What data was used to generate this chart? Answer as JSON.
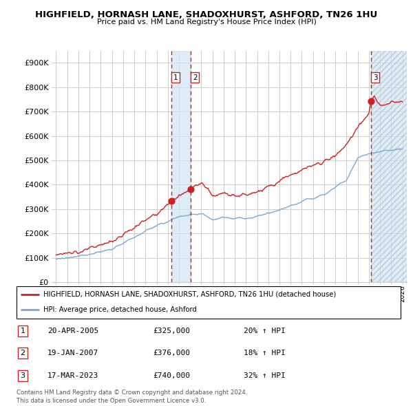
{
  "title": "HIGHFIELD, HORNASH LANE, SHADOXHURST, ASHFORD, TN26 1HU",
  "subtitle": "Price paid vs. HM Land Registry's House Price Index (HPI)",
  "ylabel_ticks": [
    "£0",
    "£100K",
    "£200K",
    "£300K",
    "£400K",
    "£500K",
    "£600K",
    "£700K",
    "£800K",
    "£900K"
  ],
  "ytick_values": [
    0,
    100000,
    200000,
    300000,
    400000,
    500000,
    600000,
    700000,
    800000,
    900000
  ],
  "ylim": [
    0,
    950000
  ],
  "xlim_start": 1994.6,
  "xlim_end": 2026.4,
  "legend_line1": "HIGHFIELD, HORNASH LANE, SHADOXHURST, ASHFORD, TN26 1HU (detached house)",
  "legend_line2": "HPI: Average price, detached house, Ashford",
  "transactions": [
    {
      "num": 1,
      "date": "20-APR-2005",
      "price": "£325,000",
      "hpi": "20% ↑ HPI",
      "year": 2005.3,
      "value": 325000
    },
    {
      "num": 2,
      "date": "19-JAN-2007",
      "price": "£376,000",
      "hpi": "18% ↑ HPI",
      "year": 2007.05,
      "value": 376000
    },
    {
      "num": 3,
      "date": "17-MAR-2023",
      "price": "£740,000",
      "hpi": "32% ↑ HPI",
      "year": 2023.2,
      "value": 740000
    }
  ],
  "footer": "Contains HM Land Registry data © Crown copyright and database right 2024.\nThis data is licensed under the Open Government Licence v3.0.",
  "hpi_color": "#7aa8d2",
  "price_color": "#cc2222",
  "vline_color": "#cc2222",
  "highlight_color": "#d0e4f5",
  "grid_color": "#cccccc",
  "background_color": "#ffffff",
  "hatch_color": "#cccccc"
}
